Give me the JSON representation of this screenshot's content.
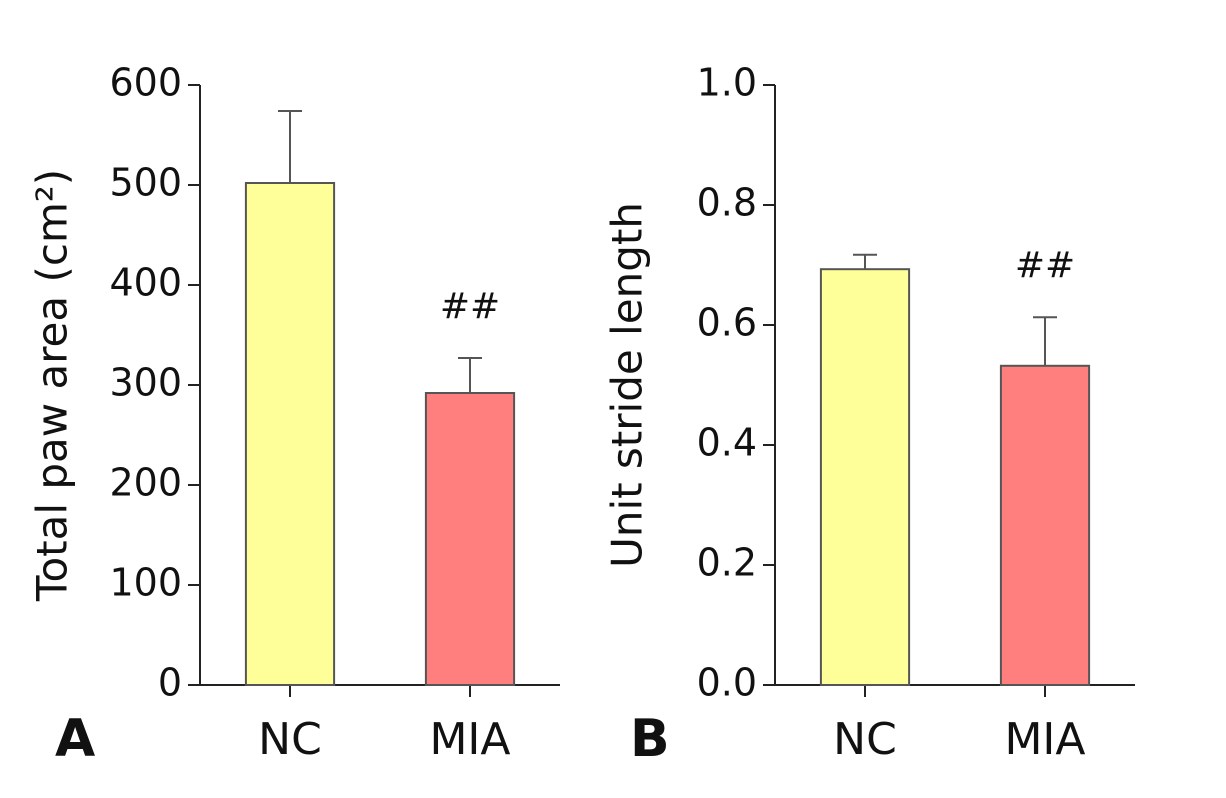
{
  "chart_data": [
    {
      "type": "bar",
      "panel_label": "A",
      "ylabel": "Total paw area (cm²)",
      "categories": [
        "NC",
        "MIA"
      ],
      "values": [
        502,
        292
      ],
      "errors": [
        72,
        35
      ],
      "colors": [
        "#ffff99",
        "#ff7f7f"
      ],
      "ylim": [
        0,
        600
      ],
      "yticks": [
        0,
        100,
        200,
        300,
        400,
        500,
        600
      ],
      "annotations": [
        {
          "text": "##",
          "category": "MIA"
        }
      ]
    },
    {
      "type": "bar",
      "panel_label": "B",
      "ylabel": "Unit stride length",
      "categories": [
        "NC",
        "MIA"
      ],
      "values": [
        0.693,
        0.532
      ],
      "errors": [
        0.024,
        0.081
      ],
      "colors": [
        "#ffff99",
        "#ff7f7f"
      ],
      "ylim": [
        0,
        1.0
      ],
      "yticks": [
        {
          "value": 0,
          "label": "0.0"
        },
        0.2,
        0.4,
        0.6,
        0.8,
        {
          "value": 1.0,
          "label": "1.0"
        }
      ],
      "annotations": [
        {
          "text": "##",
          "category": "MIA"
        }
      ]
    }
  ]
}
